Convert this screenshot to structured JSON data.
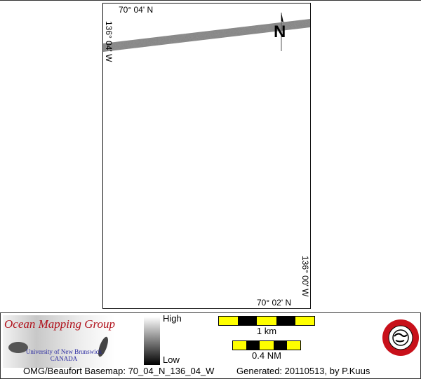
{
  "map": {
    "top_lat_label": "70° 04' N",
    "bottom_lat_label": "70° 02' N",
    "left_lon_label": "136° 04' W",
    "right_lon_label": "136° 00' W",
    "north_arrow_label": "N",
    "swath_color": "#8a8a8a"
  },
  "legend": {
    "high_label": "High",
    "low_label": "Low",
    "scale_km_label": "1 km",
    "scale_nm_label": "0.4 NM",
    "scale_colors": [
      "#ffff00",
      "#000000"
    ]
  },
  "logo": {
    "title": "Ocean Mapping Group",
    "university": "University of New Brunswick",
    "country": "CANADA",
    "title_color": "#b0101a"
  },
  "footer": {
    "basemap_text": "OMG/Beaufort Basemap: 70_04_N_136_04_W",
    "generated_text": "Generated: 20110513, by P.Kuus"
  }
}
